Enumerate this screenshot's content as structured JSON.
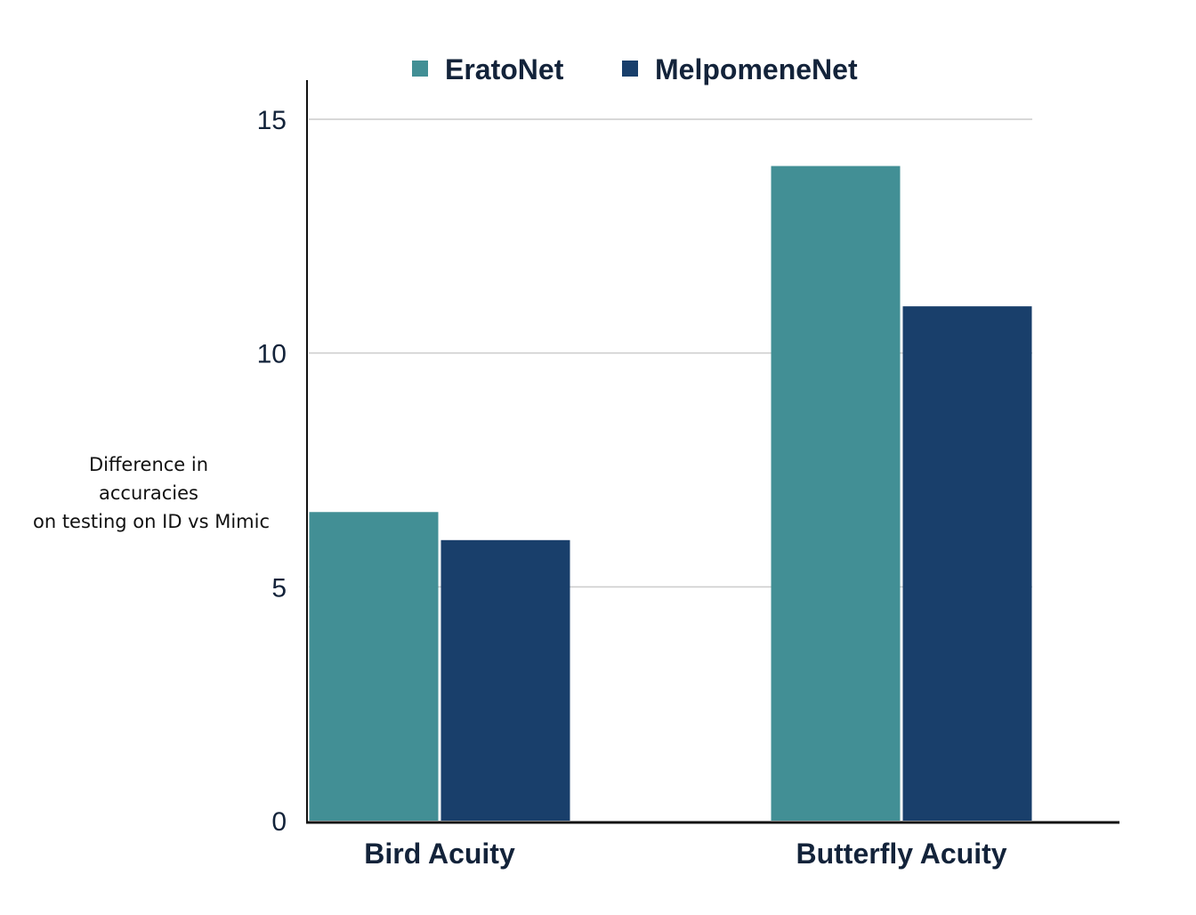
{
  "chart_data": {
    "type": "bar",
    "categories": [
      "Bird Acuity",
      "Butterfly Acuity"
    ],
    "series": [
      {
        "name": "EratoNet",
        "values": [
          6.6,
          14.0
        ],
        "color": "#428f95"
      },
      {
        "name": "MelpomeneNet",
        "values": [
          6.0,
          11.0
        ],
        "color": "#193f6b"
      }
    ],
    "ylabel": [
      "Difference in",
      "accuracies",
      "on testing on ID vs Mimic"
    ],
    "ylim": [
      0,
      15
    ],
    "yticks": [
      "0",
      "5",
      "10",
      "15"
    ],
    "grid": true,
    "legend": "top"
  }
}
